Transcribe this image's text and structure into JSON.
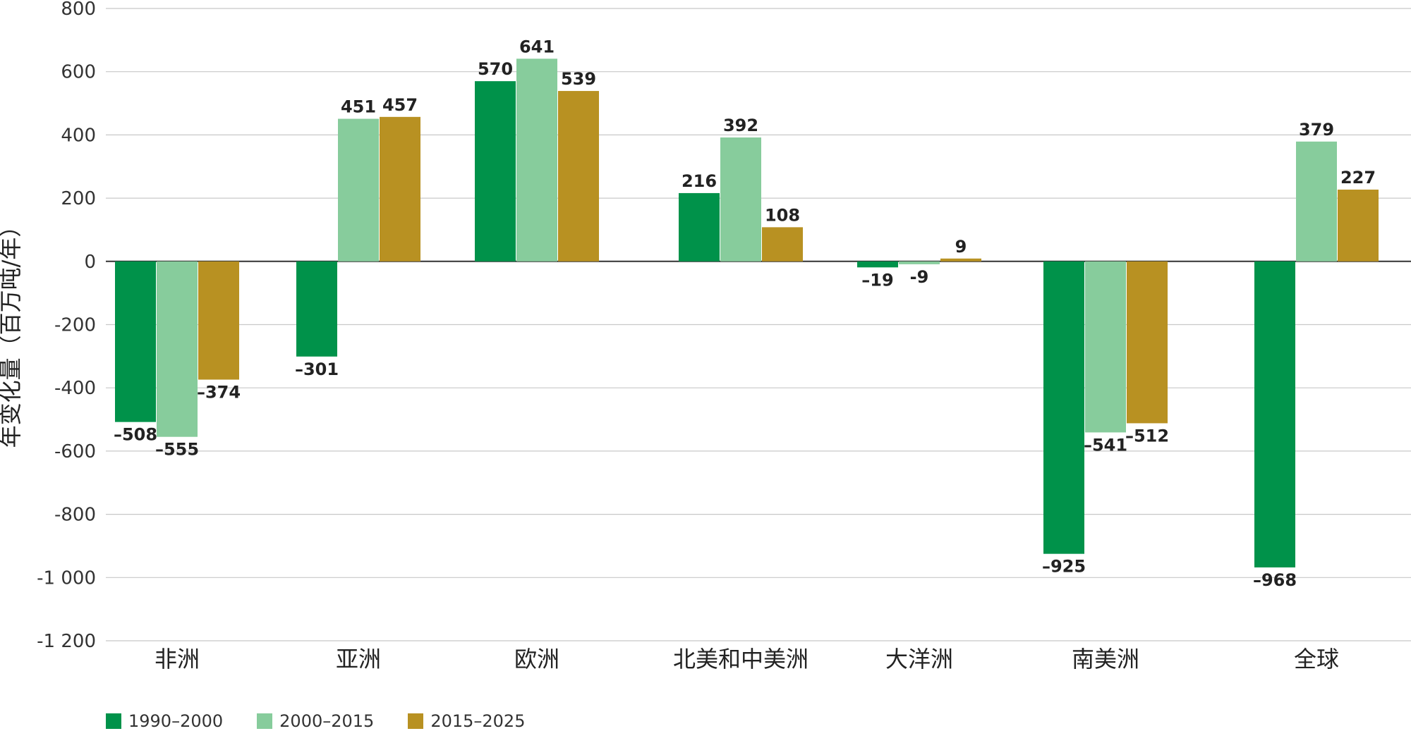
{
  "chart_data": {
    "type": "bar",
    "ylabel": "年变化量（百万吨/年）",
    "ylim": [
      -1200,
      800
    ],
    "yticks": [
      {
        "value": 800,
        "label": "800"
      },
      {
        "value": 600,
        "label": "600"
      },
      {
        "value": 400,
        "label": "400"
      },
      {
        "value": 200,
        "label": "200"
      },
      {
        "value": 0,
        "label": "0"
      },
      {
        "value": -200,
        "label": "-200"
      },
      {
        "value": -400,
        "label": "-400"
      },
      {
        "value": -600,
        "label": "-600"
      },
      {
        "value": -800,
        "label": "-800"
      },
      {
        "value": -1000,
        "label": "-1 000"
      },
      {
        "value": -1200,
        "label": "-1 200"
      }
    ],
    "categories": [
      "非洲",
      "亚洲",
      "欧洲",
      "北美和中美洲",
      "大洋洲",
      "南美洲",
      "全球"
    ],
    "series": [
      {
        "name": "1990–2000",
        "color": "#00924a",
        "values": [
          -508,
          -301,
          570,
          216,
          -19,
          -925,
          -968
        ],
        "labels": [
          "–508",
          "–301",
          "570",
          "216",
          "–19",
          "–925",
          "–968"
        ]
      },
      {
        "name": "2000–2015",
        "color": "#87cc9c",
        "values": [
          -555,
          451,
          641,
          392,
          -9,
          -541,
          379
        ],
        "labels": [
          "–555",
          "451",
          "641",
          "392",
          "-9",
          "–541",
          "379"
        ]
      },
      {
        "name": "2015–2025",
        "color": "#b89122",
        "values": [
          -374,
          457,
          539,
          108,
          9,
          -512,
          227
        ],
        "labels": [
          "–374",
          "457",
          "539",
          "108",
          "9",
          "–512",
          "227"
        ]
      }
    ],
    "grid": true,
    "legend_position": "bottom-left"
  }
}
